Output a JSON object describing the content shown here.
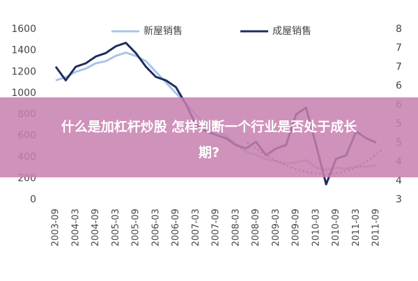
{
  "chart_data": {
    "type": "line",
    "categories": [
      "2003-09",
      null,
      "2004-03",
      null,
      "2004-09",
      null,
      "2005-03",
      null,
      "2005-09",
      null,
      "2006-03",
      null,
      "2006-09",
      null,
      "2007-03",
      null,
      "2007-09",
      null,
      "2008-03",
      null,
      "2008-09",
      null,
      "2009-03",
      null,
      "2009-09",
      null,
      "2010-03",
      null,
      "2010-09",
      null,
      "2011-03",
      null,
      "2011-09"
    ],
    "series": [
      {
        "name": "新屋销售",
        "color": "#a9c4e8",
        "values": [
          1120,
          1150,
          1200,
          1230,
          1280,
          1300,
          1350,
          1380,
          1350,
          1300,
          1200,
          1100,
          1000,
          900,
          800,
          700,
          650,
          600,
          520,
          450,
          420,
          380,
          360,
          340,
          350,
          370,
          300,
          280,
          300,
          290,
          310,
          310,
          320
        ]
      },
      {
        "name": "成屋销售",
        "color": "#1f2d5c",
        "axis": "y2",
        "values": [
          6.9,
          6.5,
          6.9,
          7.0,
          7.2,
          7.3,
          7.5,
          7.6,
          7.3,
          6.9,
          6.6,
          6.5,
          6.3,
          5.8,
          5.2,
          5.0,
          4.9,
          4.8,
          4.6,
          4.5,
          4.7,
          4.3,
          4.5,
          4.6,
          5.5,
          5.7,
          4.6,
          3.45,
          4.2,
          4.3,
          5.0,
          4.8,
          4.67
        ]
      }
    ],
    "ylim": [
      0,
      1600
    ],
    "yticks": [
      0,
      200,
      400,
      600,
      800,
      1000,
      1200,
      1400,
      1600
    ],
    "y2lim": [
      3,
      8
    ],
    "y2ticks": [
      {
        "value": 3,
        "label": "3"
      },
      {
        "value": 3.556,
        "label": "4"
      },
      {
        "value": 4.111,
        "label": "4"
      },
      {
        "value": 4.667,
        "label": "5"
      },
      {
        "value": 5.222,
        "label": "5"
      },
      {
        "value": 5.778,
        "label": "6"
      },
      {
        "value": 6.333,
        "label": "6"
      },
      {
        "value": 6.889,
        "label": "7"
      },
      {
        "value": 7.444,
        "label": "7"
      },
      {
        "value": 8,
        "label": "8"
      }
    ],
    "legend": "top"
  },
  "banner": {
    "lines": [
      "什么是加杠杆炒股 怎样判断一个行业是否处于成长",
      "期?"
    ]
  }
}
